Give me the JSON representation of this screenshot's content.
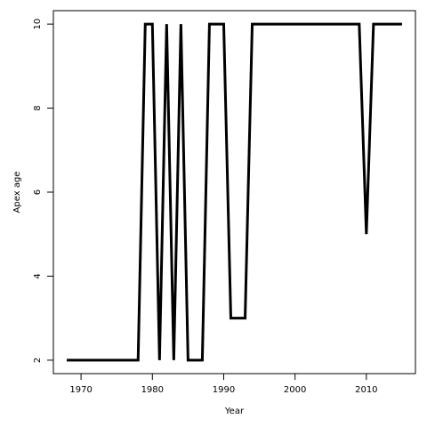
{
  "chart_data": {
    "type": "line",
    "x_label": "Year",
    "y_label": "Apex age",
    "x": [
      1968,
      1969,
      1970,
      1971,
      1972,
      1973,
      1974,
      1975,
      1976,
      1977,
      1978,
      1979,
      1980,
      1981,
      1982,
      1983,
      1984,
      1985,
      1986,
      1987,
      1988,
      1989,
      1990,
      1991,
      1992,
      1993,
      1994,
      1995,
      1996,
      1997,
      1998,
      1999,
      2000,
      2001,
      2002,
      2003,
      2004,
      2005,
      2006,
      2007,
      2008,
      2009,
      2010,
      2011,
      2012,
      2013,
      2014,
      2015
    ],
    "values": [
      2,
      2,
      2,
      2,
      2,
      2,
      2,
      2,
      2,
      2,
      2,
      10,
      10,
      2,
      10,
      2,
      10,
      2,
      2,
      2,
      10,
      10,
      10,
      3,
      3,
      3,
      10,
      10,
      10,
      10,
      10,
      10,
      10,
      10,
      10,
      10,
      10,
      10,
      10,
      10,
      10,
      10,
      5,
      10,
      10,
      10,
      10,
      10
    ],
    "color": "#000000",
    "xlim": [
      1966.12,
      2016.88
    ],
    "xticks": [
      1970,
      1980,
      1990,
      2000,
      2010
    ],
    "ylim": [
      1.68,
      10.32
    ],
    "yticks": [
      2,
      4,
      6,
      8,
      10
    ]
  }
}
